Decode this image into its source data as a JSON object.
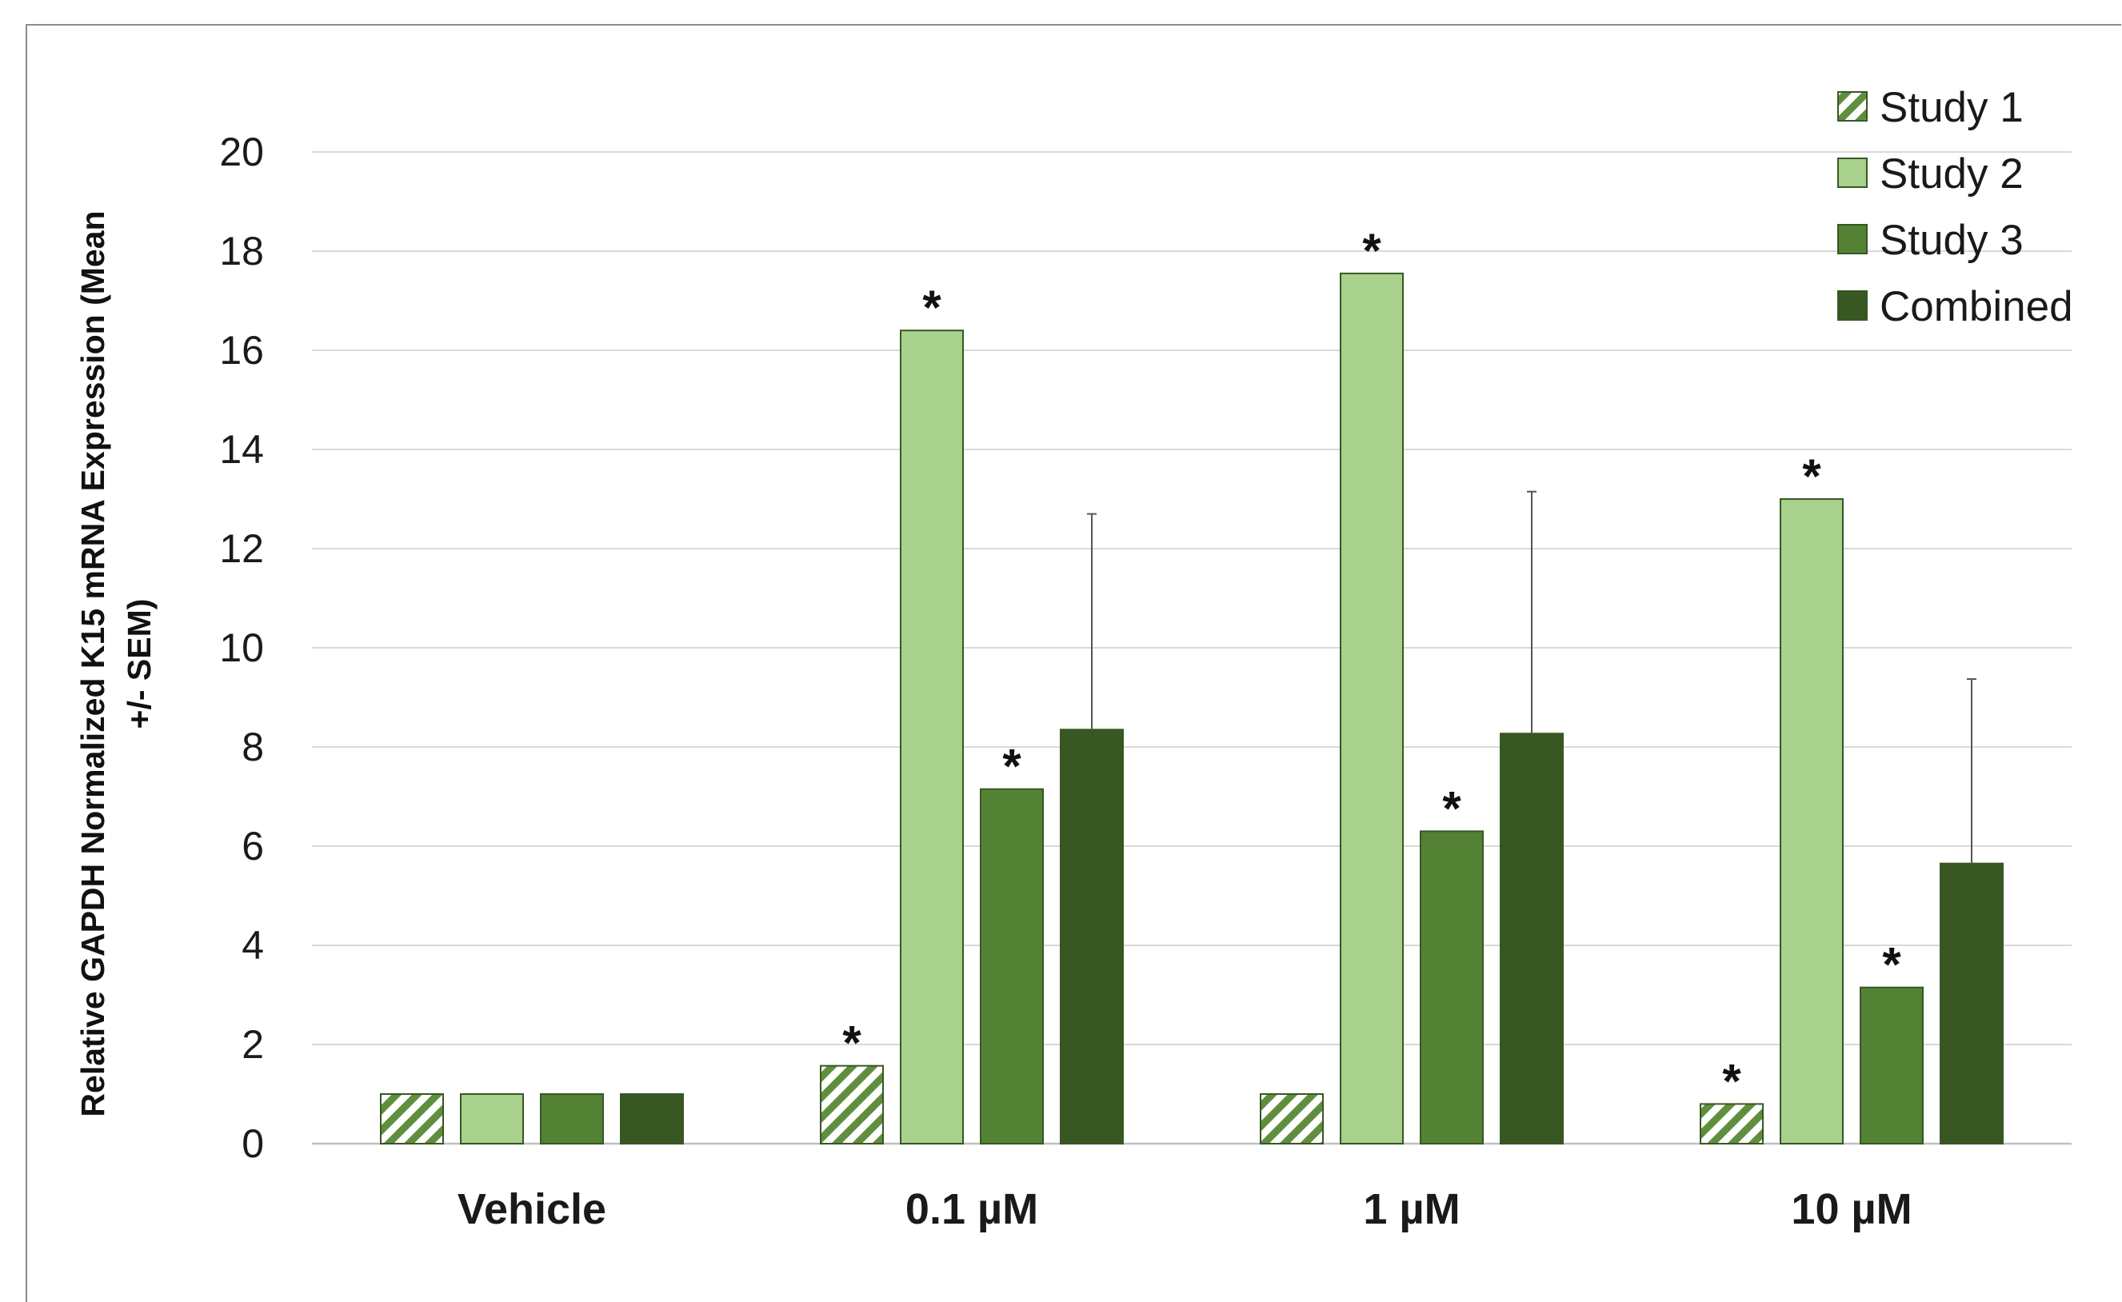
{
  "chart_data": {
    "type": "bar",
    "title": "",
    "xlabel": "",
    "ylabel_lines": [
      "Relative GAPDH Normalized K15 mRNA Expression (Mean",
      "+/- SEM)"
    ],
    "categories": [
      "Vehicle",
      "0.1 µM",
      "1 µM",
      "10 µM"
    ],
    "ylim": [
      0,
      20
    ],
    "yticks": [
      0,
      2,
      4,
      6,
      8,
      10,
      12,
      14,
      16,
      18,
      20
    ],
    "grid": true,
    "legend_position": "top-right",
    "series": [
      {
        "name": "Study 1",
        "values": [
          1.0,
          1.57,
          1.0,
          0.8
        ],
        "significant": [
          false,
          true,
          false,
          true
        ],
        "error_upper": [
          null,
          null,
          null,
          null
        ],
        "color": "#5f8f3e",
        "pattern": "hatched"
      },
      {
        "name": "Study 2",
        "values": [
          1.0,
          16.4,
          17.55,
          13.0
        ],
        "significant": [
          false,
          true,
          true,
          true
        ],
        "error_upper": [
          null,
          null,
          null,
          null
        ],
        "color": "#a9d18e",
        "pattern": "solid"
      },
      {
        "name": "Study 3",
        "values": [
          1.0,
          7.15,
          6.3,
          3.15
        ],
        "significant": [
          false,
          true,
          true,
          true
        ],
        "error_upper": [
          null,
          null,
          null,
          null
        ],
        "color": "#548235",
        "pattern": "solid"
      },
      {
        "name": "Combined",
        "values": [
          1.0,
          8.35,
          8.27,
          5.65
        ],
        "significant": [
          false,
          false,
          false,
          false
        ],
        "error_upper": [
          null,
          12.7,
          13.15,
          9.37
        ],
        "color": "#385723",
        "pattern": "solid"
      }
    ],
    "significance_marker": "*"
  },
  "colors": {
    "gridline": "#d9d9d9",
    "axis": "#bfbfbf",
    "bar_outline": "#385723",
    "error_bar": "#555555"
  }
}
